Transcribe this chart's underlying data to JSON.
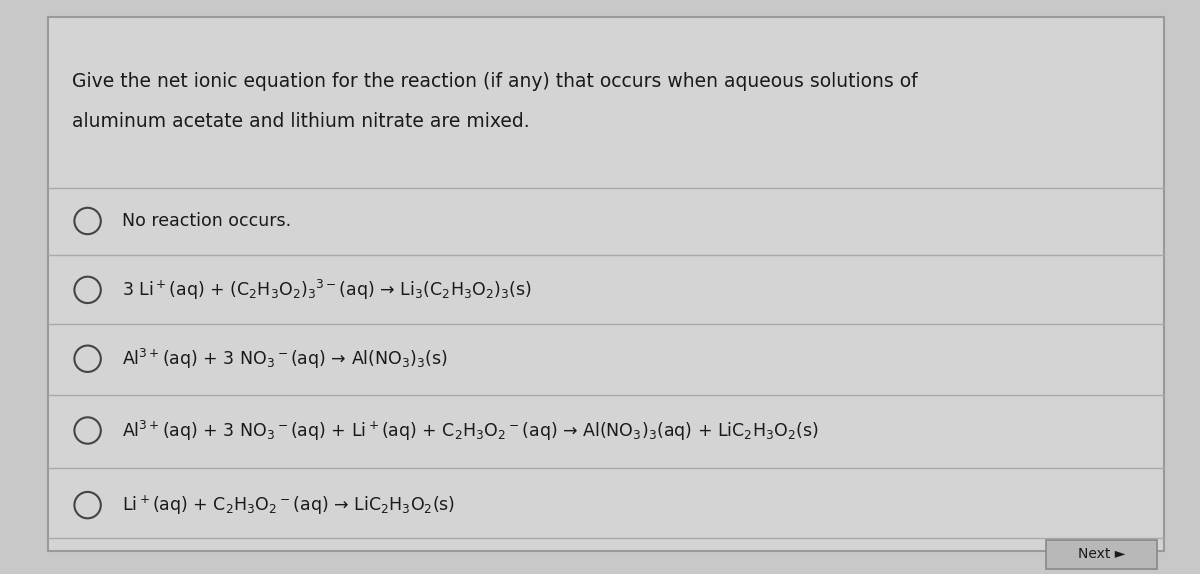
{
  "background_color": "#c8c8c8",
  "panel_color": "#d4d4d4",
  "panel_border_color": "#999999",
  "question_text_line1": "Give the net ionic equation for the reaction (if any) that occurs when aqueous solutions of",
  "question_text_line2": "aluminum acetate and lithium nitrate are mixed.",
  "options": [
    "No reaction occurs.",
    "3 Li$^+$(aq) + (C$_2$H$_3$O$_2$)$_3$$^{3-}$(aq) → Li$_3$(C$_2$H$_3$O$_2$)$_3$(s)",
    "Al$^{3+}$(aq) + 3 NO$_3$$^-$(aq) → Al(NO$_3$)$_3$(s)",
    "Al$^{3+}$(aq) + 3 NO$_3$$^-$(aq) + Li$^+$(aq) + C$_2$H$_3$O$_2$$^-$(aq) → Al(NO$_3$)$_3$(aq) + LiC$_2$H$_3$O$_2$(s)",
    "Li$^+$(aq) + C$_2$H$_3$O$_2$$^-$(aq) → LiC$_2$H$_3$O$_2$(s)"
  ],
  "text_color": "#1a1a1a",
  "circle_color": "#444444",
  "line_color": "#aaaaaa",
  "next_button_color": "#b8b8b8",
  "next_button_border": "#888888",
  "font_size_question": 13.5,
  "font_size_option": 12.5,
  "fig_width": 12.0,
  "fig_height": 5.74
}
